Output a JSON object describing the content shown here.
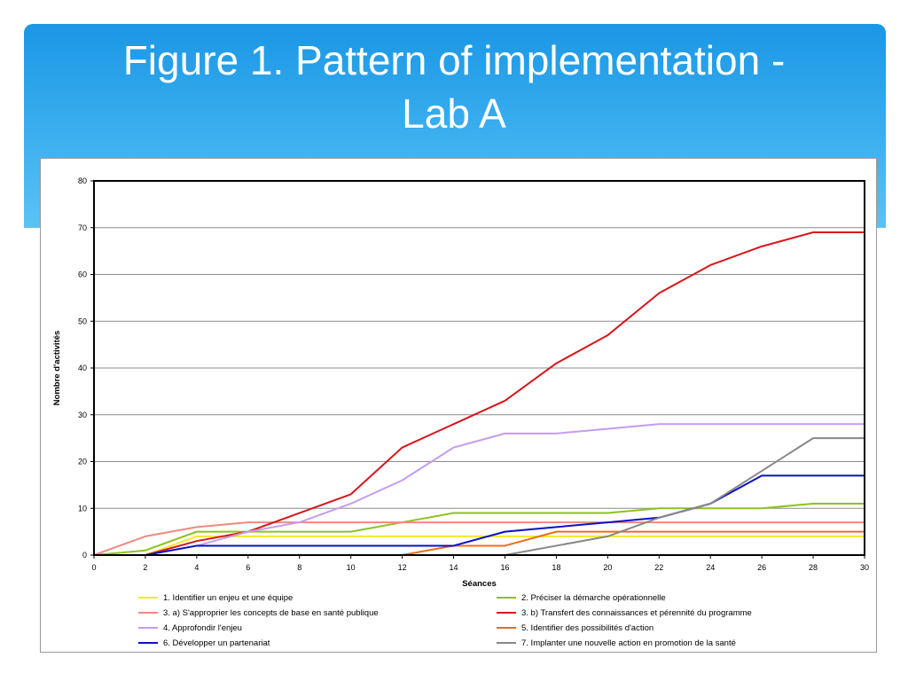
{
  "slide": {
    "title_line1": "Figure 1. Pattern of implementation -",
    "title_line2": "Lab A"
  },
  "chart_data": {
    "type": "line",
    "title": "",
    "xlabel": "Séances",
    "ylabel": "Nombre d'activités",
    "xlim": [
      0,
      30
    ],
    "ylim": [
      0,
      80
    ],
    "xticks": [
      0,
      2,
      4,
      6,
      8,
      10,
      12,
      14,
      16,
      18,
      20,
      22,
      24,
      26,
      28,
      30
    ],
    "yticks": [
      0,
      10,
      20,
      30,
      40,
      50,
      60,
      70,
      80
    ],
    "grid": "horizontal",
    "legend": "bottom",
    "x": [
      0,
      2,
      4,
      6,
      8,
      10,
      12,
      14,
      16,
      18,
      20,
      22,
      24,
      26,
      28,
      30
    ],
    "series": [
      {
        "name": "1. Identifier un enjeu et une équipe",
        "color": "#f2ea27",
        "values": [
          0,
          0,
          4,
          4,
          4,
          4,
          4,
          4,
          4,
          4,
          4,
          4,
          4,
          4,
          4,
          4
        ]
      },
      {
        "name": "2. Préciser la démarche opérationnelle",
        "color": "#8dc21f",
        "values": [
          0,
          1,
          5,
          5,
          5,
          5,
          7,
          9,
          9,
          9,
          9,
          10,
          10,
          10,
          11,
          11
        ]
      },
      {
        "name": "3. a) S'approprier les concepts de base en santé publique",
        "color": "#f08a80",
        "values": [
          0,
          4,
          6,
          7,
          7,
          7,
          7,
          7,
          7,
          7,
          7,
          7,
          7,
          7,
          7,
          7
        ]
      },
      {
        "name": "3. b) Transfert des connaissances et pérennité du programme",
        "color": "#d8161c",
        "values": [
          0,
          0,
          3,
          5,
          9,
          13,
          23,
          28,
          33,
          41,
          47,
          56,
          62,
          66,
          69,
          69
        ]
      },
      {
        "name": "4. Approfondir l'enjeu",
        "color": "#c49cf0",
        "values": [
          0,
          0,
          2,
          5,
          7,
          11,
          16,
          23,
          26,
          26,
          27,
          28,
          28,
          28,
          28,
          28
        ]
      },
      {
        "name": "5. Identifier des possibilités d'action",
        "color": "#ea6d1c",
        "values": [
          0,
          0,
          0,
          0,
          0,
          0,
          0,
          2,
          2,
          5,
          5,
          5,
          5,
          5,
          5,
          5
        ]
      },
      {
        "name": "6. Développer un partenariat",
        "color": "#0a10c8",
        "values": [
          0,
          0,
          2,
          2,
          2,
          2,
          2,
          2,
          5,
          6,
          7,
          8,
          11,
          17,
          17,
          17
        ]
      },
      {
        "name": "7. Implanter une nouvelle action en promotion de la santé",
        "color": "#888888",
        "values": [
          0,
          0,
          0,
          0,
          0,
          0,
          0,
          0,
          0,
          2,
          4,
          8,
          11,
          18,
          25,
          25
        ]
      }
    ]
  }
}
